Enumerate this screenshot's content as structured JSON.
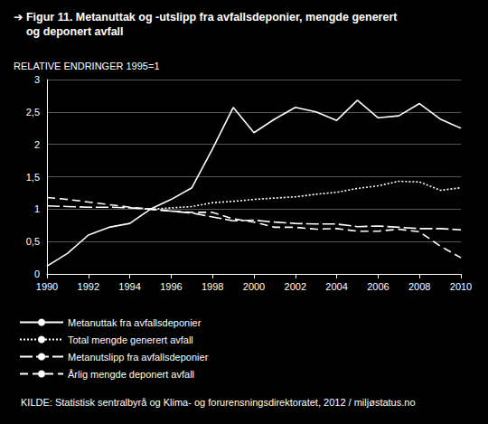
{
  "chart_data": {
    "type": "line",
    "title": "➔ Figur 11. Metanuttak og -utslipp fra avfallsdeponier, mengde generert\n    og deponert avfall",
    "subtitle": "RELATIVE ENDRINGER 1995=1",
    "source": "KILDE: Statistisk sentralbyrå og Klima- og forurensningsdirektoratet, 2012 / miljøstatus.no",
    "x": [
      1990,
      1991,
      1992,
      1993,
      1994,
      1995,
      1996,
      1997,
      1998,
      1999,
      2000,
      2001,
      2002,
      2003,
      2004,
      2005,
      2006,
      2007,
      2008,
      2009,
      2010
    ],
    "series": [
      {
        "name": "Metanuttak fra avfallsdeponier",
        "color": "#ffffff",
        "line_style": "solid",
        "values": [
          0.12,
          0.32,
          0.6,
          0.72,
          0.78,
          1.0,
          1.15,
          1.33,
          1.93,
          2.57,
          2.18,
          2.39,
          2.57,
          2.5,
          2.37,
          2.68,
          2.41,
          2.44,
          2.63,
          2.39,
          2.25
        ]
      },
      {
        "name": "Total mengde generert avfall",
        "color": "#ffffff",
        "line_style": "dotted",
        "values": [
          null,
          null,
          null,
          null,
          null,
          1.0,
          1.02,
          1.04,
          1.1,
          1.12,
          1.15,
          1.17,
          1.19,
          1.23,
          1.26,
          1.32,
          1.36,
          1.43,
          1.42,
          1.29,
          1.33
        ]
      },
      {
        "name": "Metanutslipp fra avfallsdeponier",
        "color": "#ffffff",
        "line_style": "longdash",
        "values": [
          1.05,
          1.04,
          1.03,
          1.03,
          1.02,
          1.0,
          0.97,
          0.94,
          0.88,
          0.82,
          0.83,
          0.8,
          0.78,
          0.77,
          0.77,
          0.73,
          0.74,
          0.72,
          0.7,
          0.7,
          0.68
        ]
      },
      {
        "name": "Årlig mengde deponert avfall",
        "color": "#ffffff",
        "line_style": "dashed",
        "values": [
          1.18,
          1.15,
          1.11,
          1.07,
          1.03,
          1.0,
          0.97,
          0.95,
          0.95,
          0.85,
          0.8,
          0.72,
          0.72,
          0.69,
          0.7,
          0.66,
          0.66,
          0.69,
          0.65,
          0.43,
          0.25
        ]
      }
    ],
    "xlim": [
      1990,
      2010
    ],
    "xticks": [
      1990,
      1992,
      1994,
      1996,
      1998,
      2000,
      2002,
      2004,
      2006,
      2008,
      2010
    ],
    "ylim": [
      0,
      3
    ],
    "yticks": [
      0,
      {
        "value": 0.5,
        "label": "0,5"
      },
      1,
      {
        "value": 1.5,
        "label": "1,5"
      },
      2,
      {
        "value": 2.5,
        "label": "2,5"
      },
      3
    ],
    "grid": true,
    "legend": "bottom"
  }
}
